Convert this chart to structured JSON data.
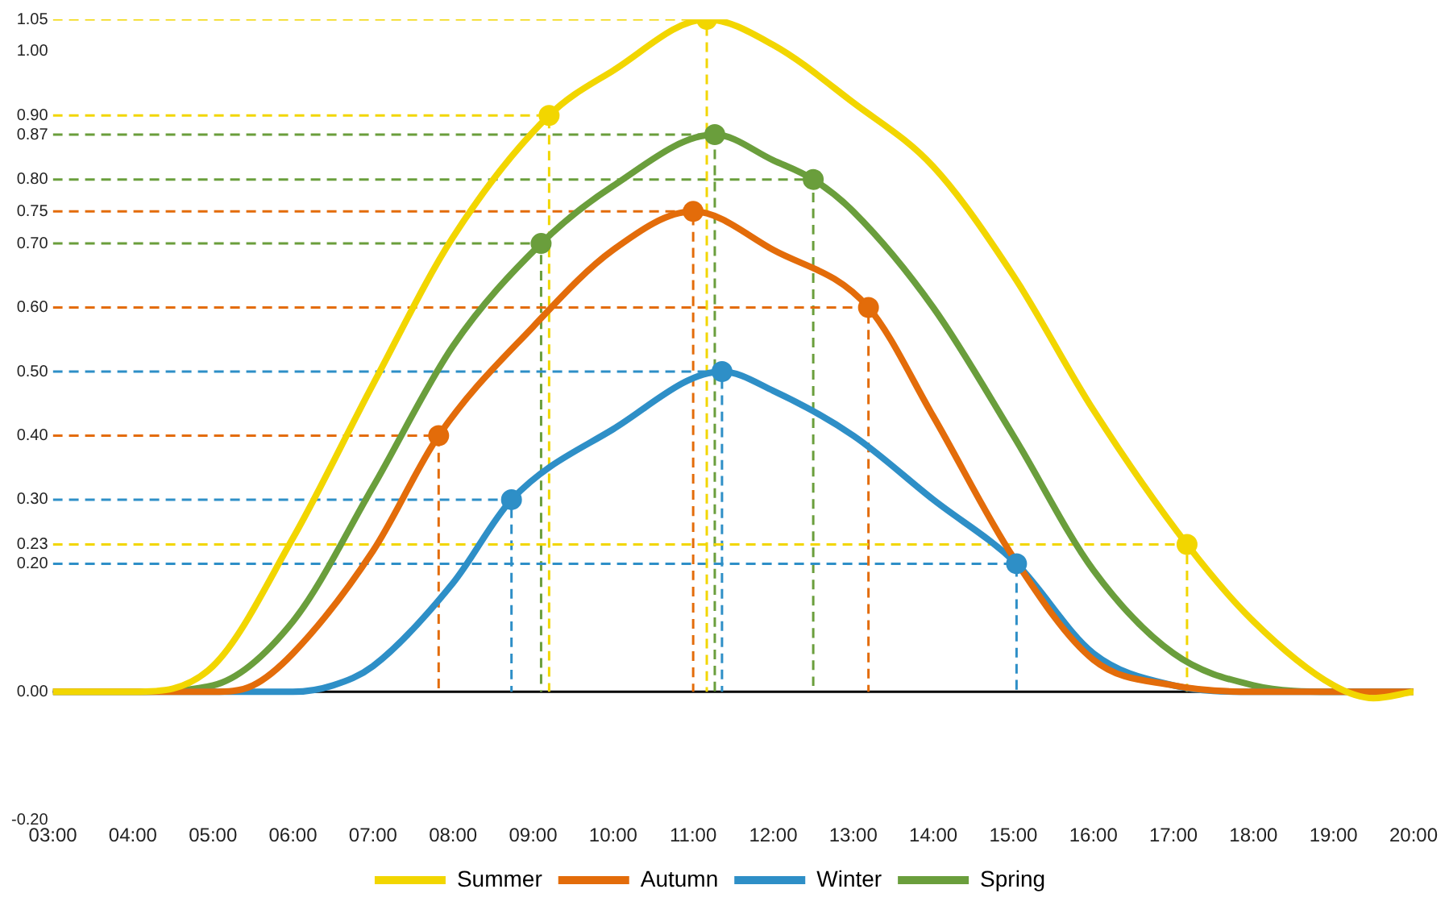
{
  "chart_data": {
    "type": "line",
    "xlim": [
      3,
      20
    ],
    "xticks": [
      {
        "value": 3,
        "label": "03:00"
      },
      {
        "value": 4,
        "label": "04:00"
      },
      {
        "value": 5,
        "label": "05:00"
      },
      {
        "value": 6,
        "label": "06:00"
      },
      {
        "value": 7,
        "label": "07:00"
      },
      {
        "value": 8,
        "label": "08:00"
      },
      {
        "value": 9,
        "label": "09:00"
      },
      {
        "value": 10,
        "label": "10:00"
      },
      {
        "value": 11,
        "label": "11:00"
      },
      {
        "value": 12,
        "label": "12:00"
      },
      {
        "value": 13,
        "label": "13:00"
      },
      {
        "value": 14,
        "label": "14:00"
      },
      {
        "value": 15,
        "label": "15:00"
      },
      {
        "value": 16,
        "label": "16:00"
      },
      {
        "value": 17,
        "label": "17:00"
      },
      {
        "value": 18,
        "label": "18:00"
      },
      {
        "value": 19,
        "label": "19:00"
      },
      {
        "value": 20,
        "label": "20:00"
      }
    ],
    "ylim": [
      -0.2,
      1.05
    ],
    "yticks": [
      {
        "value": -0.2,
        "label": "-0.20"
      },
      {
        "value": 0,
        "label": "0.00"
      },
      {
        "value": 0.2,
        "label": "0.20"
      },
      {
        "value": 0.23,
        "label": "0.23"
      },
      {
        "value": 0.3,
        "label": "0.30"
      },
      {
        "value": 0.4,
        "label": "0.40"
      },
      {
        "value": 0.5,
        "label": "0.50"
      },
      {
        "value": 0.6,
        "label": "0.60"
      },
      {
        "value": 0.7,
        "label": "0.70"
      },
      {
        "value": 0.75,
        "label": "0.75"
      },
      {
        "value": 0.8,
        "label": "0.80"
      },
      {
        "value": 0.87,
        "label": "0.87"
      },
      {
        "value": 0.9,
        "label": "0.90"
      },
      {
        "value": 1,
        "label": "1.00"
      },
      {
        "value": 1.05,
        "label": "1.05"
      }
    ],
    "grid": false,
    "legend": "bottom",
    "marker": "none",
    "line_style": "solid",
    "ref_lines": [
      {
        "axis": "y",
        "value": 0,
        "color": "#000000",
        "line_style": "solid"
      }
    ],
    "series": [
      {
        "name": "Summer",
        "color": "#f2d600",
        "x": [
          3,
          4,
          5,
          6,
          7,
          8,
          9.2,
          10,
          11.17,
          12,
          13,
          14,
          15,
          16,
          17.17,
          18,
          19,
          19.5,
          20
        ],
        "values": [
          0,
          0,
          0.04,
          0.24,
          0.48,
          0.71,
          0.9,
          0.97,
          1.05,
          1.01,
          0.92,
          0.82,
          0.65,
          0.44,
          0.23,
          0.11,
          0.01,
          -0.01,
          0
        ]
      },
      {
        "name": "Autumn",
        "color": "#e36c0a",
        "x": [
          3,
          5,
          5.5,
          6,
          7,
          7.82,
          9,
          10,
          11,
          12,
          13.19,
          14,
          15,
          16,
          17,
          18,
          20
        ],
        "values": [
          0,
          0,
          0.01,
          0.06,
          0.22,
          0.4,
          0.57,
          0.69,
          0.75,
          0.69,
          0.6,
          0.43,
          0.21,
          0.05,
          0.01,
          0,
          0
        ]
      },
      {
        "name": "Winter",
        "color": "#2e8fc7",
        "x": [
          3,
          6,
          6.5,
          7,
          8,
          8.73,
          10,
          11.36,
          12,
          13,
          14,
          15.04,
          16,
          17,
          18,
          20
        ],
        "values": [
          0,
          0,
          0.01,
          0.04,
          0.17,
          0.3,
          0.41,
          0.5,
          0.47,
          0.4,
          0.3,
          0.2,
          0.06,
          0.01,
          0,
          0
        ]
      },
      {
        "name": "Spring",
        "color": "#6a9e3c",
        "x": [
          3,
          4,
          5,
          6,
          7,
          8,
          9.1,
          10,
          11.27,
          12,
          12.5,
          13,
          14,
          15,
          16,
          17,
          18,
          19,
          20
        ],
        "values": [
          0,
          0,
          0.01,
          0.11,
          0.32,
          0.54,
          0.7,
          0.79,
          0.87,
          0.83,
          0.8,
          0.75,
          0.6,
          0.4,
          0.19,
          0.06,
          0.01,
          0,
          0
        ]
      },
      {
        "color": "#f2d600",
        "line_style": "dashed",
        "x": [
          3,
          9.2,
          9.2
        ],
        "values": [
          0.9,
          0.9,
          0
        ]
      },
      {
        "color": "#f2d600",
        "line_style": "dashed",
        "x": [
          3,
          11.17,
          11.17
        ],
        "values": [
          1.05,
          1.05,
          0
        ]
      },
      {
        "color": "#f2d600",
        "line_style": "dashed",
        "x": [
          3,
          17.17,
          17.17
        ],
        "values": [
          0.23,
          0.23,
          0
        ]
      },
      {
        "color": "#e36c0a",
        "line_style": "dashed",
        "x": [
          3,
          7.82,
          7.82
        ],
        "values": [
          0.4,
          0.4,
          0
        ]
      },
      {
        "color": "#e36c0a",
        "line_style": "dashed",
        "x": [
          3,
          11,
          11
        ],
        "values": [
          0.75,
          0.75,
          0
        ]
      },
      {
        "color": "#e36c0a",
        "line_style": "dashed",
        "x": [
          3,
          13.19,
          13.19
        ],
        "values": [
          0.6,
          0.6,
          0
        ]
      },
      {
        "color": "#2e8fc7",
        "line_style": "dashed",
        "x": [
          3,
          8.73,
          8.73
        ],
        "values": [
          0.3,
          0.3,
          0
        ]
      },
      {
        "color": "#2e8fc7",
        "line_style": "dashed",
        "x": [
          3,
          11.36,
          11.36
        ],
        "values": [
          0.5,
          0.5,
          0
        ]
      },
      {
        "color": "#2e8fc7",
        "line_style": "dashed",
        "x": [
          3,
          15.04,
          15.04
        ],
        "values": [
          0.2,
          0.2,
          0
        ]
      },
      {
        "color": "#6a9e3c",
        "line_style": "dashed",
        "x": [
          3,
          9.1,
          9.1
        ],
        "values": [
          0.7,
          0.7,
          0
        ]
      },
      {
        "color": "#6a9e3c",
        "line_style": "dashed",
        "x": [
          3,
          11.27,
          11.27
        ],
        "values": [
          0.87,
          0.87,
          0
        ]
      },
      {
        "color": "#6a9e3c",
        "line_style": "dashed",
        "x": [
          3,
          12.5,
          12.5
        ],
        "values": [
          0.8,
          0.8,
          0
        ]
      },
      {
        "type": "scatter",
        "color": "#f2d600",
        "marker": "circle",
        "x": [
          9.2,
          11.17,
          17.17
        ],
        "values": [
          0.9,
          1.05,
          0.23
        ]
      },
      {
        "type": "scatter",
        "color": "#e36c0a",
        "marker": "circle",
        "x": [
          7.82,
          11,
          13.19
        ],
        "values": [
          0.4,
          0.75,
          0.6
        ]
      },
      {
        "type": "scatter",
        "color": "#2e8fc7",
        "marker": "circle",
        "x": [
          8.73,
          11.36,
          15.04
        ],
        "values": [
          0.3,
          0.5,
          0.2
        ]
      },
      {
        "type": "scatter",
        "color": "#6a9e3c",
        "marker": "circle",
        "x": [
          9.1,
          11.27,
          12.5
        ],
        "values": [
          0.7,
          0.87,
          0.8
        ]
      }
    ]
  }
}
